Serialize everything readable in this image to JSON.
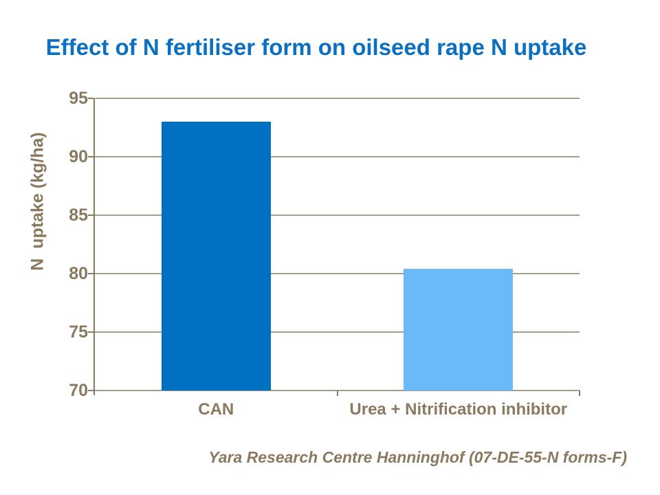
{
  "header": {
    "title": "Effect of N fertiliser form on oilseed rape N uptake",
    "title_color": "#0b6fc2"
  },
  "chart_data": {
    "type": "bar",
    "title": "Effect of N fertiliser form on oilseed rape N uptake",
    "categories": [
      "CAN",
      "Urea + Nitrification inhibitor"
    ],
    "values": [
      93,
      80.4
    ],
    "bar_colors": [
      "#0070c0",
      "#6abaf7"
    ],
    "xlabel": "",
    "ylabel": "N  uptake (kg/ha)",
    "ylim": [
      70,
      95
    ],
    "yticks": [
      70,
      75,
      80,
      85,
      90,
      95
    ],
    "grid": true,
    "legend": "none",
    "axis_color": "#8a795f",
    "axis_text_color": "#8a795f",
    "gridline_color": "#a79b8c"
  },
  "footer": {
    "source": "Yara Research Centre Hanninghof (07-DE-55-N forms-F)",
    "source_color": "#8a795f"
  }
}
